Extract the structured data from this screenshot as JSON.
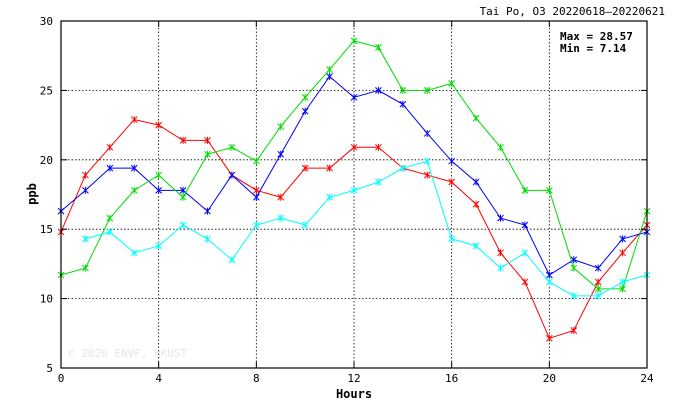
{
  "chart_data": {
    "type": "line",
    "title": "Tai Po, O3 20220618–20220621",
    "xlabel": "Hours",
    "ylabel": "ppb",
    "xlim": [
      0,
      24
    ],
    "ylim": [
      5,
      30
    ],
    "x_ticks": [
      "0",
      "4",
      "8",
      "12",
      "16",
      "20",
      "24"
    ],
    "y_ticks": [
      "5",
      "10",
      "15",
      "20",
      "25",
      "30"
    ],
    "grid": true,
    "stats": {
      "max_label": "Max = 28.57",
      "min_label": "Min =  7.14"
    },
    "watermark": "© 2026 ENVF, HKUST",
    "series": [
      {
        "color": "#ff0000",
        "x": [
          0,
          1,
          2,
          3,
          4,
          5,
          6,
          7,
          8,
          9,
          10,
          11,
          12,
          13,
          14,
          15,
          16,
          17,
          18,
          19,
          20,
          21,
          22,
          23,
          24
        ],
        "values": [
          14.8,
          18.9,
          20.9,
          22.9,
          22.5,
          21.4,
          21.4,
          18.9,
          17.8,
          17.3,
          19.4,
          19.4,
          20.9,
          20.9,
          19.4,
          18.9,
          18.4,
          16.8,
          13.3,
          11.2,
          7.14,
          7.7,
          11.2,
          13.3,
          15.3
        ]
      },
      {
        "color": "#0000ff",
        "x": [
          0,
          1,
          2,
          3,
          4,
          5,
          6,
          7,
          8,
          9,
          10,
          11,
          12,
          13,
          14,
          15,
          16,
          17,
          18,
          19,
          20,
          21,
          22,
          23,
          24
        ],
        "values": [
          16.3,
          17.8,
          19.4,
          19.4,
          17.8,
          17.8,
          16.3,
          18.9,
          17.3,
          20.4,
          23.5,
          26.0,
          24.5,
          25.0,
          24.0,
          21.9,
          19.9,
          18.4,
          15.8,
          15.3,
          11.7,
          12.8,
          12.2,
          14.3,
          14.8
        ]
      },
      {
        "color": "#00dd00",
        "x": [
          0,
          1,
          2,
          3,
          4,
          5,
          6,
          7,
          8,
          9,
          10,
          11,
          12,
          13,
          14,
          15,
          16,
          17,
          18,
          19,
          20,
          21,
          22,
          23,
          24
        ],
        "values": [
          11.7,
          12.2,
          15.8,
          17.8,
          18.9,
          17.3,
          20.4,
          20.9,
          19.9,
          22.4,
          24.5,
          26.5,
          28.57,
          28.1,
          25.0,
          25.0,
          25.5,
          23.0,
          20.9,
          17.8,
          17.8,
          12.2,
          10.7,
          10.7,
          16.3
        ]
      },
      {
        "color": "#00ffff",
        "x": [
          1,
          2,
          3,
          4,
          5,
          6,
          7,
          8,
          9,
          10,
          11,
          12,
          13,
          14,
          15,
          16,
          17,
          18,
          19,
          20,
          21,
          22,
          23,
          24
        ],
        "values": [
          14.3,
          14.8,
          13.3,
          13.8,
          15.3,
          14.3,
          12.8,
          15.3,
          15.8,
          15.3,
          17.3,
          17.8,
          18.4,
          19.4,
          19.9,
          14.3,
          13.8,
          12.2,
          13.3,
          11.2,
          10.2,
          10.2,
          11.2,
          11.7
        ]
      }
    ]
  }
}
